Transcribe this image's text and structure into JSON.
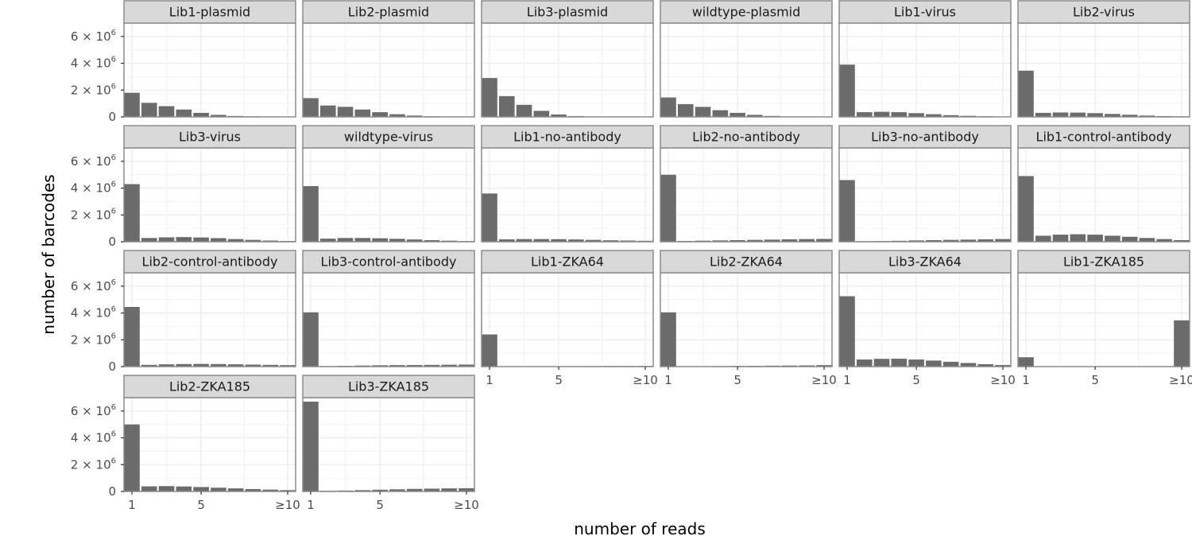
{
  "chart_data": {
    "type": "bar",
    "xlabel": "number of reads",
    "ylabel": "number of barcodes",
    "x": [
      1,
      2,
      3,
      4,
      5,
      6,
      7,
      8,
      9,
      10
    ],
    "x_ticks": [
      "1",
      "5",
      "≥10"
    ],
    "y_ticks": [
      {
        "mantissa": "0",
        "exponent": ""
      },
      {
        "mantissa": "2 × 10",
        "exponent": "6"
      },
      {
        "mantissa": "4 × 10",
        "exponent": "6"
      },
      {
        "mantissa": "6 × 10",
        "exponent": "6"
      }
    ],
    "ylim": [
      0,
      7000000
    ],
    "grid": true,
    "bar_color": "#6b6b6b",
    "strip_color": "#d9d9d9",
    "panels": [
      {
        "name": "Lib1-plasmid",
        "values": [
          1800000,
          1050000,
          800000,
          550000,
          300000,
          150000,
          70000,
          40000,
          20000,
          20000
        ]
      },
      {
        "name": "Lib2-plasmid",
        "values": [
          1400000,
          850000,
          750000,
          550000,
          350000,
          200000,
          100000,
          50000,
          20000,
          20000
        ]
      },
      {
        "name": "Lib3-plasmid",
        "values": [
          2900000,
          1550000,
          900000,
          450000,
          180000,
          60000,
          20000,
          10000,
          5000,
          5000
        ]
      },
      {
        "name": "wildtype-plasmid",
        "values": [
          1450000,
          950000,
          750000,
          500000,
          300000,
          150000,
          70000,
          30000,
          20000,
          20000
        ]
      },
      {
        "name": "Lib1-virus",
        "values": [
          3900000,
          350000,
          380000,
          350000,
          280000,
          200000,
          130000,
          80000,
          50000,
          30000
        ]
      },
      {
        "name": "Lib2-virus",
        "values": [
          3450000,
          300000,
          330000,
          320000,
          280000,
          220000,
          160000,
          100000,
          60000,
          40000
        ]
      },
      {
        "name": "Lib3-virus",
        "values": [
          4300000,
          280000,
          330000,
          350000,
          320000,
          270000,
          200000,
          140000,
          90000,
          60000
        ]
      },
      {
        "name": "wildtype-virus",
        "values": [
          4150000,
          230000,
          280000,
          280000,
          260000,
          220000,
          170000,
          120000,
          80000,
          50000
        ]
      },
      {
        "name": "Lib1-no-antibody",
        "values": [
          3600000,
          180000,
          200000,
          200000,
          190000,
          170000,
          140000,
          110000,
          90000,
          70000
        ]
      },
      {
        "name": "Lib2-no-antibody",
        "values": [
          5000000,
          60000,
          80000,
          100000,
          120000,
          140000,
          160000,
          180000,
          200000,
          210000
        ]
      },
      {
        "name": "Lib3-no-antibody",
        "values": [
          4600000,
          40000,
          50000,
          70000,
          100000,
          120000,
          140000,
          160000,
          180000,
          200000
        ]
      },
      {
        "name": "Lib1-control-antibody",
        "values": [
          4900000,
          450000,
          530000,
          560000,
          530000,
          450000,
          370000,
          280000,
          200000,
          120000
        ]
      },
      {
        "name": "Lib2-control-antibody",
        "values": [
          4450000,
          130000,
          170000,
          190000,
          200000,
          190000,
          170000,
          150000,
          130000,
          110000
        ]
      },
      {
        "name": "Lib3-control-antibody",
        "values": [
          4050000,
          40000,
          60000,
          80000,
          100000,
          110000,
          120000,
          130000,
          140000,
          150000
        ]
      },
      {
        "name": "Lib1-ZKA64",
        "values": [
          2400000,
          15000,
          20000,
          25000,
          30000,
          35000,
          40000,
          45000,
          50000,
          55000
        ]
      },
      {
        "name": "Lib2-ZKA64",
        "values": [
          4050000,
          20000,
          30000,
          40000,
          50000,
          60000,
          70000,
          80000,
          90000,
          110000
        ]
      },
      {
        "name": "Lib3-ZKA64",
        "values": [
          5250000,
          530000,
          580000,
          590000,
          530000,
          450000,
          360000,
          270000,
          180000,
          120000
        ]
      },
      {
        "name": "Lib1-ZKA185",
        "values": [
          700000,
          5000,
          5000,
          5000,
          5000,
          5000,
          5000,
          5000,
          5000,
          3450000
        ]
      },
      {
        "name": "Lib2-ZKA185",
        "values": [
          5000000,
          380000,
          400000,
          370000,
          330000,
          280000,
          230000,
          180000,
          140000,
          100000
        ]
      },
      {
        "name": "Lib3-ZKA185",
        "values": [
          6700000,
          50000,
          70000,
          100000,
          130000,
          160000,
          190000,
          210000,
          230000,
          240000
        ]
      }
    ]
  }
}
